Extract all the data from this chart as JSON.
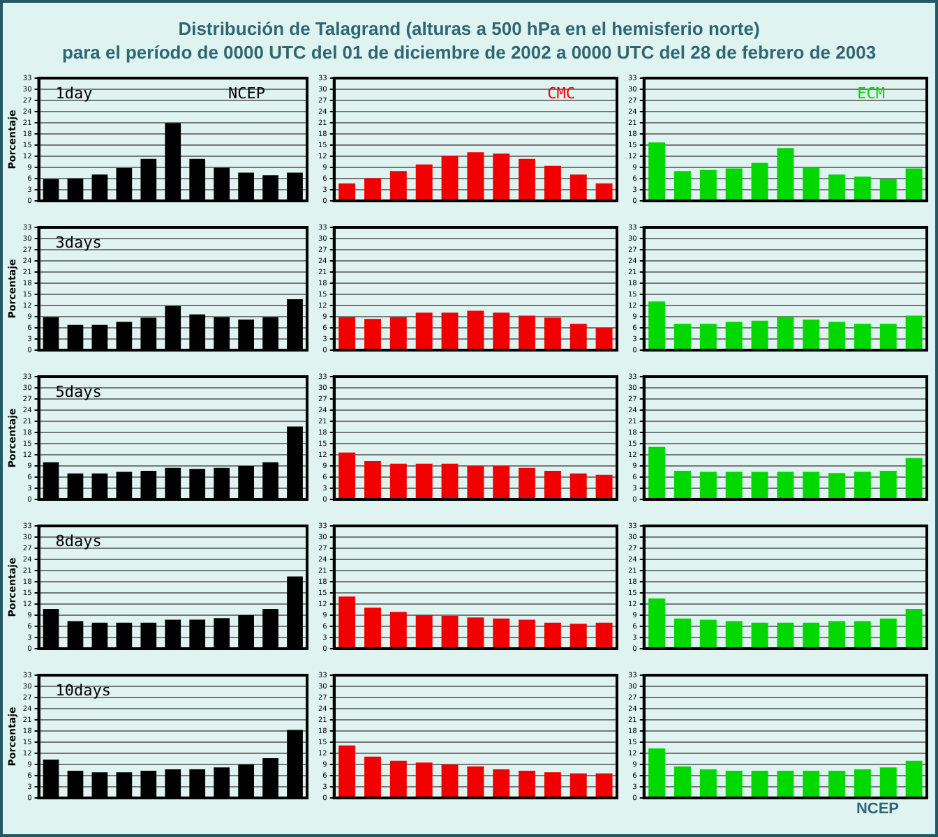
{
  "chart_data": [
    {
      "type": "bar",
      "title": "Distribución de Talagrand (alturas a 500 hPa en el hemisferio norte)",
      "subtitle": "para el período de 0000 UTC del 01 de diciembre de 2002 a 0000 UTC del 28 de febrero de 2003",
      "ylabel": "Porcentaje",
      "annotations": [
        "1day",
        "NCEP"
      ],
      "categories": [
        null,
        null,
        null,
        null,
        null,
        null,
        null,
        null,
        null,
        null,
        null
      ],
      "values": [
        5.8,
        6.0,
        7.1,
        8.8,
        11.3,
        20.9,
        11.3,
        8.9,
        7.6,
        6.9,
        7.6
      ],
      "color": "#000000",
      "ylim": [
        0,
        33
      ],
      "yticks": [
        0,
        3,
        6,
        9,
        12,
        15,
        18,
        21,
        24,
        27,
        30,
        33
      ],
      "grid": true,
      "legend": false
    },
    {
      "type": "bar",
      "annotations": [
        "CMC"
      ],
      "categories": [
        null,
        null,
        null,
        null,
        null,
        null,
        null,
        null,
        null,
        null,
        null
      ],
      "values": [
        4.7,
        6.1,
        8.0,
        9.8,
        12.1,
        13.1,
        12.7,
        11.3,
        9.4,
        7.1,
        4.7
      ],
      "color": "#f00000",
      "ylim": [
        0,
        33
      ],
      "yticks": [
        0,
        3,
        6,
        9,
        12,
        15,
        18,
        21,
        24,
        27,
        30,
        33
      ],
      "grid": true,
      "legend": false
    },
    {
      "type": "bar",
      "annotations": [
        "ECM"
      ],
      "categories": [
        null,
        null,
        null,
        null,
        null,
        null,
        null,
        null,
        null,
        null,
        null
      ],
      "values": [
        15.7,
        8.0,
        8.3,
        8.7,
        10.2,
        14.2,
        8.9,
        7.1,
        6.5,
        5.8,
        8.7
      ],
      "color": "#00d800",
      "ylim": [
        0,
        33
      ],
      "yticks": [
        0,
        3,
        6,
        9,
        12,
        15,
        18,
        21,
        24,
        27,
        30,
        33
      ],
      "grid": true,
      "legend": false
    },
    {
      "type": "bar",
      "ylabel": "Porcentaje",
      "annotations": [
        "3days"
      ],
      "categories": [
        null,
        null,
        null,
        null,
        null,
        null,
        null,
        null,
        null,
        null,
        null
      ],
      "values": [
        8.8,
        6.8,
        6.8,
        7.6,
        8.7,
        11.8,
        9.6,
        8.8,
        8.2,
        8.8,
        13.7
      ],
      "color": "#000000",
      "ylim": [
        0,
        33
      ],
      "yticks": [
        0,
        3,
        6,
        9,
        12,
        15,
        18,
        21,
        24,
        27,
        30,
        33
      ],
      "grid": true,
      "legend": false
    },
    {
      "type": "bar",
      "categories": [
        null,
        null,
        null,
        null,
        null,
        null,
        null,
        null,
        null,
        null,
        null
      ],
      "values": [
        8.8,
        8.4,
        8.8,
        10.1,
        10.1,
        10.6,
        10.1,
        9.3,
        8.7,
        7.1,
        6.0
      ],
      "color": "#f00000",
      "ylim": [
        0,
        33
      ],
      "yticks": [
        0,
        3,
        6,
        9,
        12,
        15,
        18,
        21,
        24,
        27,
        30,
        33
      ],
      "grid": true,
      "legend": false
    },
    {
      "type": "bar",
      "categories": [
        null,
        null,
        null,
        null,
        null,
        null,
        null,
        null,
        null,
        null,
        null
      ],
      "values": [
        13.1,
        7.1,
        7.1,
        7.6,
        7.9,
        9.0,
        8.2,
        7.6,
        7.1,
        7.1,
        9.3
      ],
      "color": "#00d800",
      "ylim": [
        0,
        33
      ],
      "yticks": [
        0,
        3,
        6,
        9,
        12,
        15,
        18,
        21,
        24,
        27,
        30,
        33
      ],
      "grid": true,
      "legend": false
    },
    {
      "type": "bar",
      "ylabel": "Porcentaje",
      "annotations": [
        "5days"
      ],
      "categories": [
        null,
        null,
        null,
        null,
        null,
        null,
        null,
        null,
        null,
        null,
        null
      ],
      "values": [
        10.0,
        7.0,
        7.0,
        7.4,
        7.7,
        8.5,
        8.2,
        8.5,
        9.0,
        10.0,
        19.6
      ],
      "color": "#000000",
      "ylim": [
        0,
        33
      ],
      "yticks": [
        0,
        3,
        6,
        9,
        12,
        15,
        18,
        21,
        24,
        27,
        30,
        33
      ],
      "grid": true,
      "legend": false
    },
    {
      "type": "bar",
      "categories": [
        null,
        null,
        null,
        null,
        null,
        null,
        null,
        null,
        null,
        null,
        null
      ],
      "values": [
        12.6,
        10.3,
        9.6,
        9.6,
        9.6,
        9.0,
        9.0,
        8.5,
        7.7,
        7.0,
        6.6
      ],
      "color": "#f00000",
      "ylim": [
        0,
        33
      ],
      "yticks": [
        0,
        3,
        6,
        9,
        12,
        15,
        18,
        21,
        24,
        27,
        30,
        33
      ],
      "grid": true,
      "legend": false
    },
    {
      "type": "bar",
      "categories": [
        null,
        null,
        null,
        null,
        null,
        null,
        null,
        null,
        null,
        null,
        null
      ],
      "values": [
        14.1,
        7.7,
        7.4,
        7.4,
        7.4,
        7.4,
        7.4,
        7.1,
        7.4,
        7.7,
        11.1
      ],
      "color": "#00d800",
      "ylim": [
        0,
        33
      ],
      "yticks": [
        0,
        3,
        6,
        9,
        12,
        15,
        18,
        21,
        24,
        27,
        30,
        33
      ],
      "grid": true,
      "legend": false
    },
    {
      "type": "bar",
      "ylabel": "Porcentaje",
      "annotations": [
        "8days"
      ],
      "categories": [
        null,
        null,
        null,
        null,
        null,
        null,
        null,
        null,
        null,
        null,
        null
      ],
      "values": [
        10.7,
        7.4,
        7.0,
        7.0,
        7.0,
        7.8,
        7.8,
        8.2,
        9.0,
        10.7,
        19.4
      ],
      "color": "#000000",
      "ylim": [
        0,
        33
      ],
      "yticks": [
        0,
        3,
        6,
        9,
        12,
        15,
        18,
        21,
        24,
        27,
        30,
        33
      ],
      "grid": true,
      "legend": false
    },
    {
      "type": "bar",
      "categories": [
        null,
        null,
        null,
        null,
        null,
        null,
        null,
        null,
        null,
        null,
        null
      ],
      "values": [
        14.0,
        11.0,
        9.9,
        9.0,
        8.8,
        8.4,
        8.1,
        7.8,
        7.0,
        6.7,
        7.0
      ],
      "color": "#f00000",
      "ylim": [
        0,
        33
      ],
      "yticks": [
        0,
        3,
        6,
        9,
        12,
        15,
        18,
        21,
        24,
        27,
        30,
        33
      ],
      "grid": true,
      "legend": false
    },
    {
      "type": "bar",
      "categories": [
        null,
        null,
        null,
        null,
        null,
        null,
        null,
        null,
        null,
        null,
        null
      ],
      "values": [
        13.5,
        8.1,
        7.8,
        7.4,
        7.0,
        7.0,
        7.0,
        7.4,
        7.4,
        8.1,
        10.7
      ],
      "color": "#00d800",
      "ylim": [
        0,
        33
      ],
      "yticks": [
        0,
        3,
        6,
        9,
        12,
        15,
        18,
        21,
        24,
        27,
        30,
        33
      ],
      "grid": true,
      "legend": false
    },
    {
      "type": "bar",
      "ylabel": "Porcentaje",
      "annotations": [
        "10days"
      ],
      "categories": [
        null,
        null,
        null,
        null,
        null,
        null,
        null,
        null,
        null,
        null,
        null
      ],
      "values": [
        10.3,
        7.3,
        6.9,
        6.9,
        7.3,
        7.7,
        7.7,
        8.2,
        9.0,
        10.7,
        18.3
      ],
      "color": "#000000",
      "ylim": [
        0,
        33
      ],
      "yticks": [
        0,
        3,
        6,
        9,
        12,
        15,
        18,
        21,
        24,
        27,
        30,
        33
      ],
      "grid": true,
      "legend": false
    },
    {
      "type": "bar",
      "categories": [
        null,
        null,
        null,
        null,
        null,
        null,
        null,
        null,
        null,
        null,
        null
      ],
      "values": [
        14.1,
        11.1,
        10.0,
        9.5,
        9.0,
        8.5,
        7.7,
        7.3,
        6.9,
        6.6,
        6.6
      ],
      "color": "#f00000",
      "ylim": [
        0,
        33
      ],
      "yticks": [
        0,
        3,
        6,
        9,
        12,
        15,
        18,
        21,
        24,
        27,
        30,
        33
      ],
      "grid": true,
      "legend": false
    },
    {
      "type": "bar",
      "annotations": [
        "NCEP"
      ],
      "categories": [
        null,
        null,
        null,
        null,
        null,
        null,
        null,
        null,
        null,
        null,
        null
      ],
      "values": [
        13.3,
        8.5,
        7.7,
        7.3,
        7.3,
        7.3,
        7.3,
        7.3,
        7.7,
        8.2,
        10.0
      ],
      "color": "#00d800",
      "ylim": [
        0,
        33
      ],
      "yticks": [
        0,
        3,
        6,
        9,
        12,
        15,
        18,
        21,
        24,
        27,
        30,
        33
      ],
      "grid": true,
      "legend": false
    }
  ]
}
